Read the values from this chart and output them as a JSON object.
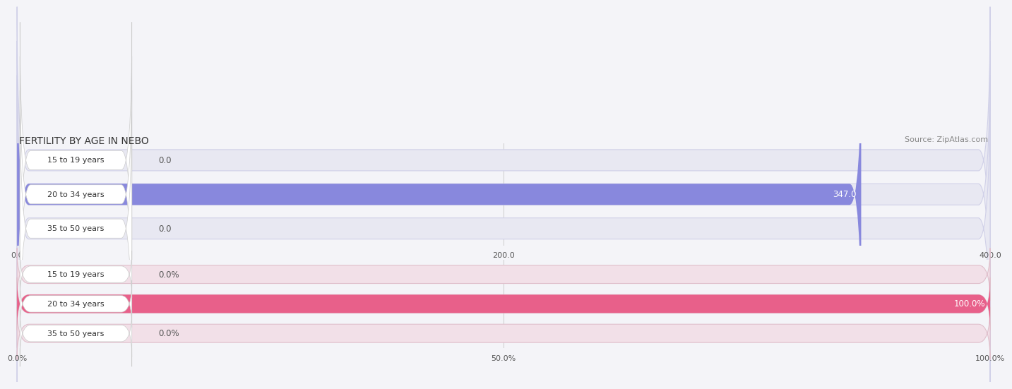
{
  "title": "FERTILITY BY AGE IN NEBO",
  "source": "Source: ZipAtlas.com",
  "top_chart": {
    "categories": [
      "15 to 19 years",
      "20 to 34 years",
      "35 to 50 years"
    ],
    "values": [
      0.0,
      347.0,
      0.0
    ],
    "bar_color": "#8888dd",
    "bar_bg_color": "#e8e8f2",
    "bar_border_color": "#d0d0e8",
    "xlim": [
      0,
      400
    ],
    "xticks": [
      0.0,
      200.0,
      400.0
    ],
    "bar_height": 0.62
  },
  "bottom_chart": {
    "categories": [
      "15 to 19 years",
      "20 to 34 years",
      "35 to 50 years"
    ],
    "values": [
      0.0,
      100.0,
      0.0
    ],
    "bar_color": "#e8608a",
    "bar_bg_color": "#f2e0e8",
    "bar_border_color": "#e0c0cc",
    "xlim": [
      0,
      100
    ],
    "xticks": [
      0.0,
      50.0,
      100.0
    ],
    "bar_height": 0.62
  },
  "background_color": "#f4f4f8",
  "label_font_size": 8.5,
  "tick_font_size": 8,
  "title_font_size": 10,
  "source_font_size": 8,
  "cat_font_size": 8
}
